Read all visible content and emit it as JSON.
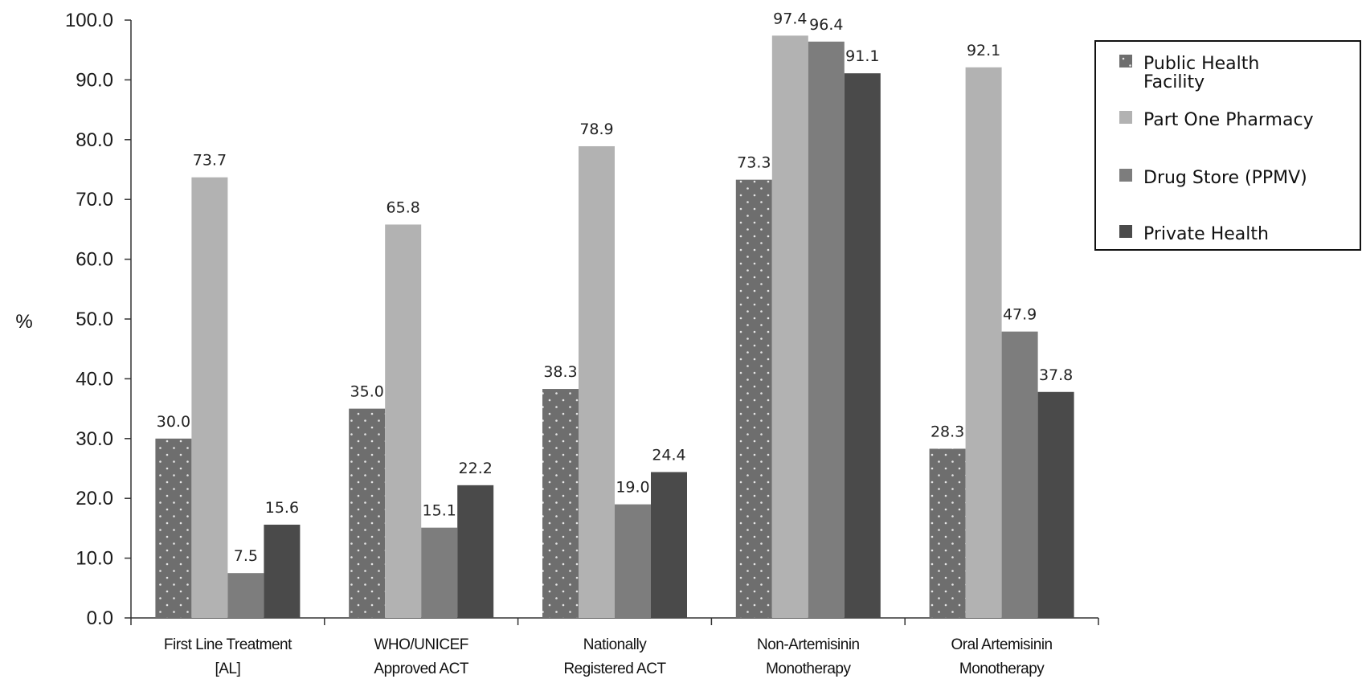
{
  "chart_data": {
    "type": "bar",
    "ylabel": "%",
    "ylim": [
      0,
      100
    ],
    "yticks": [
      "0.0",
      "10.0",
      "20.0",
      "30.0",
      "40.0",
      "50.0",
      "60.0",
      "70.0",
      "80.0",
      "90.0",
      "100.0"
    ],
    "grid": false,
    "legend_position": "top-right",
    "categories": [
      [
        "First Line Treatment",
        "[AL]"
      ],
      [
        "WHO/UNICEF",
        "Approved ACT"
      ],
      [
        "Nationally",
        "Registered ACT"
      ],
      [
        "Non-Artemisinin",
        "Monotherapy"
      ],
      [
        "Oral Artemisinin",
        "Monotherapy"
      ]
    ],
    "series": [
      {
        "name": [
          "Public Health",
          "Facility"
        ],
        "color": "#6e6e6e",
        "pattern": "dots",
        "values": [
          30.0,
          35.0,
          38.3,
          73.3,
          28.3
        ],
        "labels": [
          "30.0",
          "35.0",
          "38.3",
          "73.3",
          "28.3"
        ]
      },
      {
        "name": [
          "Part One Pharmacy"
        ],
        "color": "#b2b2b2",
        "pattern": "solid",
        "values": [
          73.7,
          65.8,
          78.9,
          97.4,
          92.1
        ],
        "labels": [
          "73.7",
          "65.8",
          "78.9",
          "97.4",
          "92.1"
        ]
      },
      {
        "name": [
          "Drug Store (PPMV)"
        ],
        "color": "#7d7d7d",
        "pattern": "solid",
        "values": [
          7.5,
          15.1,
          19.0,
          96.4,
          47.9
        ],
        "labels": [
          "7.5",
          "15.1",
          "19.0",
          "96.4",
          "47.9"
        ]
      },
      {
        "name": [
          "Private Health"
        ],
        "color": "#4a4a4a",
        "pattern": "solid",
        "values": [
          15.6,
          22.2,
          24.4,
          91.1,
          37.8
        ],
        "labels": [
          "15.6",
          "22.2",
          "24.4",
          "91.1",
          "37.8"
        ]
      }
    ]
  }
}
